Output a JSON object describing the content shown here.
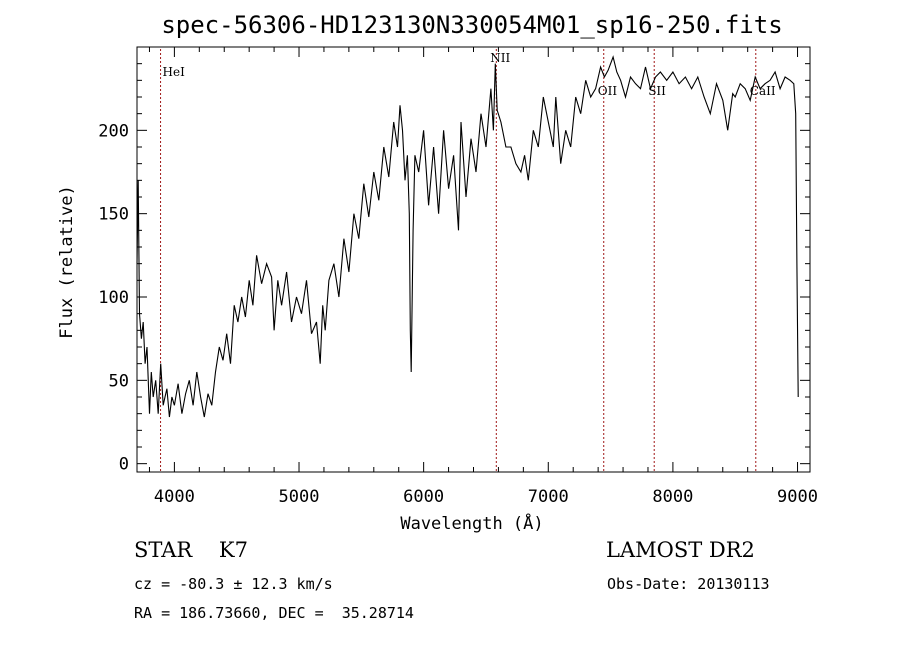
{
  "chart_data": {
    "type": "line",
    "title": "spec-56306-HD123130N330054M01_sp16-250.fits",
    "xlabel": "Wavelength (Å)",
    "ylabel": "Flux (relative)",
    "xlim": [
      3700,
      9100
    ],
    "ylim": [
      -5,
      250
    ],
    "xticks": [
      4000,
      5000,
      6000,
      7000,
      8000,
      9000
    ],
    "xtick_labels": [
      "4000",
      "5000",
      "6000",
      "7000",
      "8000",
      "9000"
    ],
    "yticks": [
      0,
      50,
      100,
      150,
      200
    ],
    "ytick_labels": [
      "0",
      "50",
      "100",
      "150",
      "200"
    ],
    "grid": false,
    "line_color": "#000000",
    "marker_color": "#a01818",
    "emission_lines": [
      {
        "name": "HeI",
        "wavelength": 3889
      },
      {
        "name": "NII",
        "wavelength": 6583
      },
      {
        "name": "OII",
        "wavelength": 7445
      },
      {
        "name": "SII",
        "wavelength": 7850
      },
      {
        "name": "CaII",
        "wavelength": 8665
      }
    ],
    "x": [
      3700,
      3710,
      3720,
      3735,
      3750,
      3765,
      3780,
      3800,
      3815,
      3830,
      3850,
      3870,
      3890,
      3910,
      3925,
      3940,
      3960,
      3980,
      4000,
      4030,
      4060,
      4090,
      4120,
      4150,
      4180,
      4210,
      4240,
      4270,
      4300,
      4330,
      4360,
      4390,
      4420,
      4450,
      4480,
      4510,
      4540,
      4570,
      4600,
      4630,
      4660,
      4700,
      4740,
      4780,
      4800,
      4830,
      4860,
      4900,
      4940,
      4980,
      5020,
      5060,
      5100,
      5140,
      5170,
      5190,
      5210,
      5240,
      5280,
      5320,
      5360,
      5400,
      5440,
      5480,
      5520,
      5560,
      5600,
      5640,
      5680,
      5720,
      5760,
      5790,
      5810,
      5830,
      5850,
      5870,
      5885,
      5893,
      5900,
      5915,
      5930,
      5960,
      6000,
      6040,
      6080,
      6120,
      6160,
      6200,
      6240,
      6280,
      6300,
      6340,
      6380,
      6420,
      6460,
      6500,
      6540,
      6560,
      6575,
      6590,
      6620,
      6660,
      6700,
      6740,
      6780,
      6810,
      6840,
      6880,
      6920,
      6960,
      7000,
      7040,
      7060,
      7100,
      7140,
      7180,
      7220,
      7260,
      7300,
      7340,
      7380,
      7420,
      7450,
      7480,
      7520,
      7550,
      7580,
      7620,
      7660,
      7700,
      7740,
      7780,
      7820,
      7860,
      7900,
      7950,
      8000,
      8050,
      8100,
      8150,
      8200,
      8250,
      8300,
      8350,
      8400,
      8440,
      8480,
      8500,
      8540,
      8580,
      8620,
      8660,
      8700,
      8740,
      8780,
      8820,
      8860,
      8900,
      8940,
      8970,
      8985,
      8995,
      9005
    ],
    "y": [
      120,
      170,
      90,
      75,
      85,
      60,
      70,
      30,
      55,
      40,
      50,
      30,
      60,
      35,
      40,
      45,
      28,
      40,
      35,
      48,
      30,
      42,
      50,
      35,
      55,
      40,
      28,
      42,
      35,
      55,
      70,
      62,
      78,
      60,
      95,
      85,
      100,
      88,
      110,
      95,
      125,
      108,
      120,
      112,
      80,
      110,
      95,
      115,
      85,
      100,
      90,
      110,
      78,
      85,
      60,
      95,
      80,
      110,
      120,
      100,
      135,
      115,
      150,
      135,
      168,
      148,
      175,
      158,
      190,
      172,
      205,
      190,
      215,
      200,
      170,
      185,
      150,
      80,
      55,
      140,
      185,
      175,
      200,
      155,
      190,
      150,
      200,
      165,
      185,
      140,
      205,
      160,
      195,
      175,
      210,
      190,
      225,
      200,
      240,
      212,
      205,
      190,
      190,
      180,
      175,
      185,
      170,
      200,
      190,
      220,
      205,
      190,
      220,
      180,
      200,
      190,
      220,
      210,
      230,
      220,
      225,
      238,
      232,
      236,
      244,
      235,
      230,
      220,
      232,
      228,
      225,
      238,
      225,
      232,
      235,
      230,
      235,
      228,
      232,
      225,
      232,
      220,
      210,
      228,
      218,
      200,
      222,
      220,
      228,
      225,
      218,
      232,
      225,
      228,
      230,
      235,
      225,
      232,
      230,
      228,
      210,
      120,
      40
    ]
  }
}
